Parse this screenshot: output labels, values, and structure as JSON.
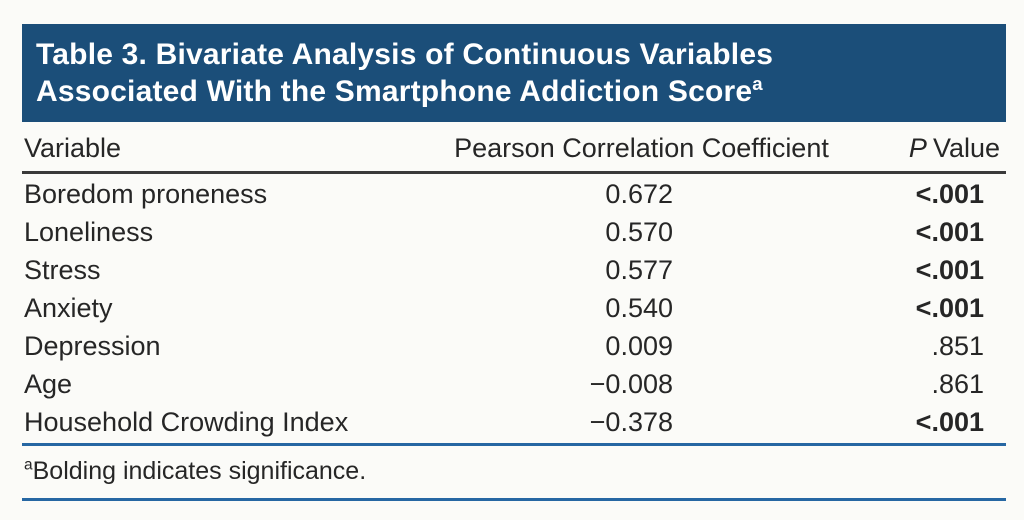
{
  "colors": {
    "page_bg": "#FBFBF8",
    "banner_bg": "#1B4E79",
    "banner_text": "#FFFFFF",
    "rule_dark": "#3A3A3A",
    "rule_blue": "#2667A3",
    "text": "#262626"
  },
  "banner": {
    "line1": "Table 3. Bivariate Analysis of Continuous Variables",
    "line2": "Associated With the Smartphone Addiction Score",
    "superscript": "a"
  },
  "table": {
    "columns": {
      "variable": "Variable",
      "coefficient": "Pearson Correlation Coefficient",
      "p_italic": "P",
      "p_rest": "Value"
    },
    "rows": [
      {
        "variable": "Boredom proneness",
        "coefficient": "0.672",
        "p_value": "<.001",
        "significant": true
      },
      {
        "variable": "Loneliness",
        "coefficient": "0.570",
        "p_value": "<.001",
        "significant": true
      },
      {
        "variable": "Stress",
        "coefficient": "0.577",
        "p_value": "<.001",
        "significant": true
      },
      {
        "variable": "Anxiety",
        "coefficient": "0.540",
        "p_value": "<.001",
        "significant": true
      },
      {
        "variable": "Depression",
        "coefficient": "0.009",
        "p_value": ".851",
        "significant": false
      },
      {
        "variable": "Age",
        "coefficient": "−0.008",
        "p_value": ".861",
        "significant": false
      },
      {
        "variable": "Household Crowding Index",
        "coefficient": "−0.378",
        "p_value": "<.001",
        "significant": true
      }
    ]
  },
  "footnote": {
    "superscript": "a",
    "text": "Bolding indicates significance."
  }
}
